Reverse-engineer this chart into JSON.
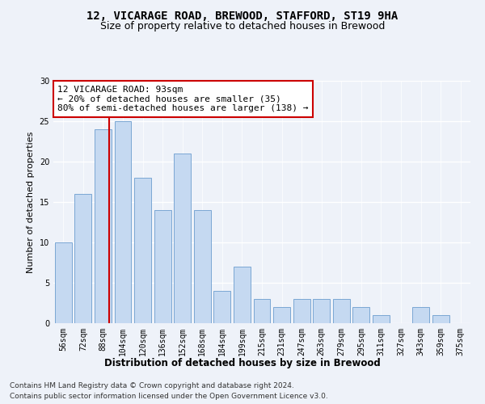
{
  "title1": "12, VICARAGE ROAD, BREWOOD, STAFFORD, ST19 9HA",
  "title2": "Size of property relative to detached houses in Brewood",
  "xlabel": "Distribution of detached houses by size in Brewood",
  "ylabel": "Number of detached properties",
  "categories": [
    "56sqm",
    "72sqm",
    "88sqm",
    "104sqm",
    "120sqm",
    "136sqm",
    "152sqm",
    "168sqm",
    "184sqm",
    "199sqm",
    "215sqm",
    "231sqm",
    "247sqm",
    "263sqm",
    "279sqm",
    "295sqm",
    "311sqm",
    "327sqm",
    "343sqm",
    "359sqm",
    "375sqm"
  ],
  "values": [
    10,
    16,
    24,
    25,
    18,
    14,
    21,
    14,
    4,
    7,
    3,
    2,
    3,
    3,
    3,
    2,
    1,
    0,
    2,
    1,
    0
  ],
  "bar_color": "#c5d9f1",
  "bar_edge_color": "#7ba7d4",
  "vline_color": "#cc0000",
  "annotation_text": "12 VICARAGE ROAD: 93sqm\n← 20% of detached houses are smaller (35)\n80% of semi-detached houses are larger (138) →",
  "annotation_box_color": "#ffffff",
  "annotation_box_edge": "#cc0000",
  "ylim": [
    0,
    30
  ],
  "yticks": [
    0,
    5,
    10,
    15,
    20,
    25,
    30
  ],
  "footer1": "Contains HM Land Registry data © Crown copyright and database right 2024.",
  "footer2": "Contains public sector information licensed under the Open Government Licence v3.0.",
  "background_color": "#eef2f9",
  "grid_color": "#ffffff",
  "title1_fontsize": 10,
  "title2_fontsize": 9,
  "xlabel_fontsize": 8.5,
  "ylabel_fontsize": 8,
  "tick_fontsize": 7,
  "annotation_fontsize": 8,
  "footer_fontsize": 6.5
}
